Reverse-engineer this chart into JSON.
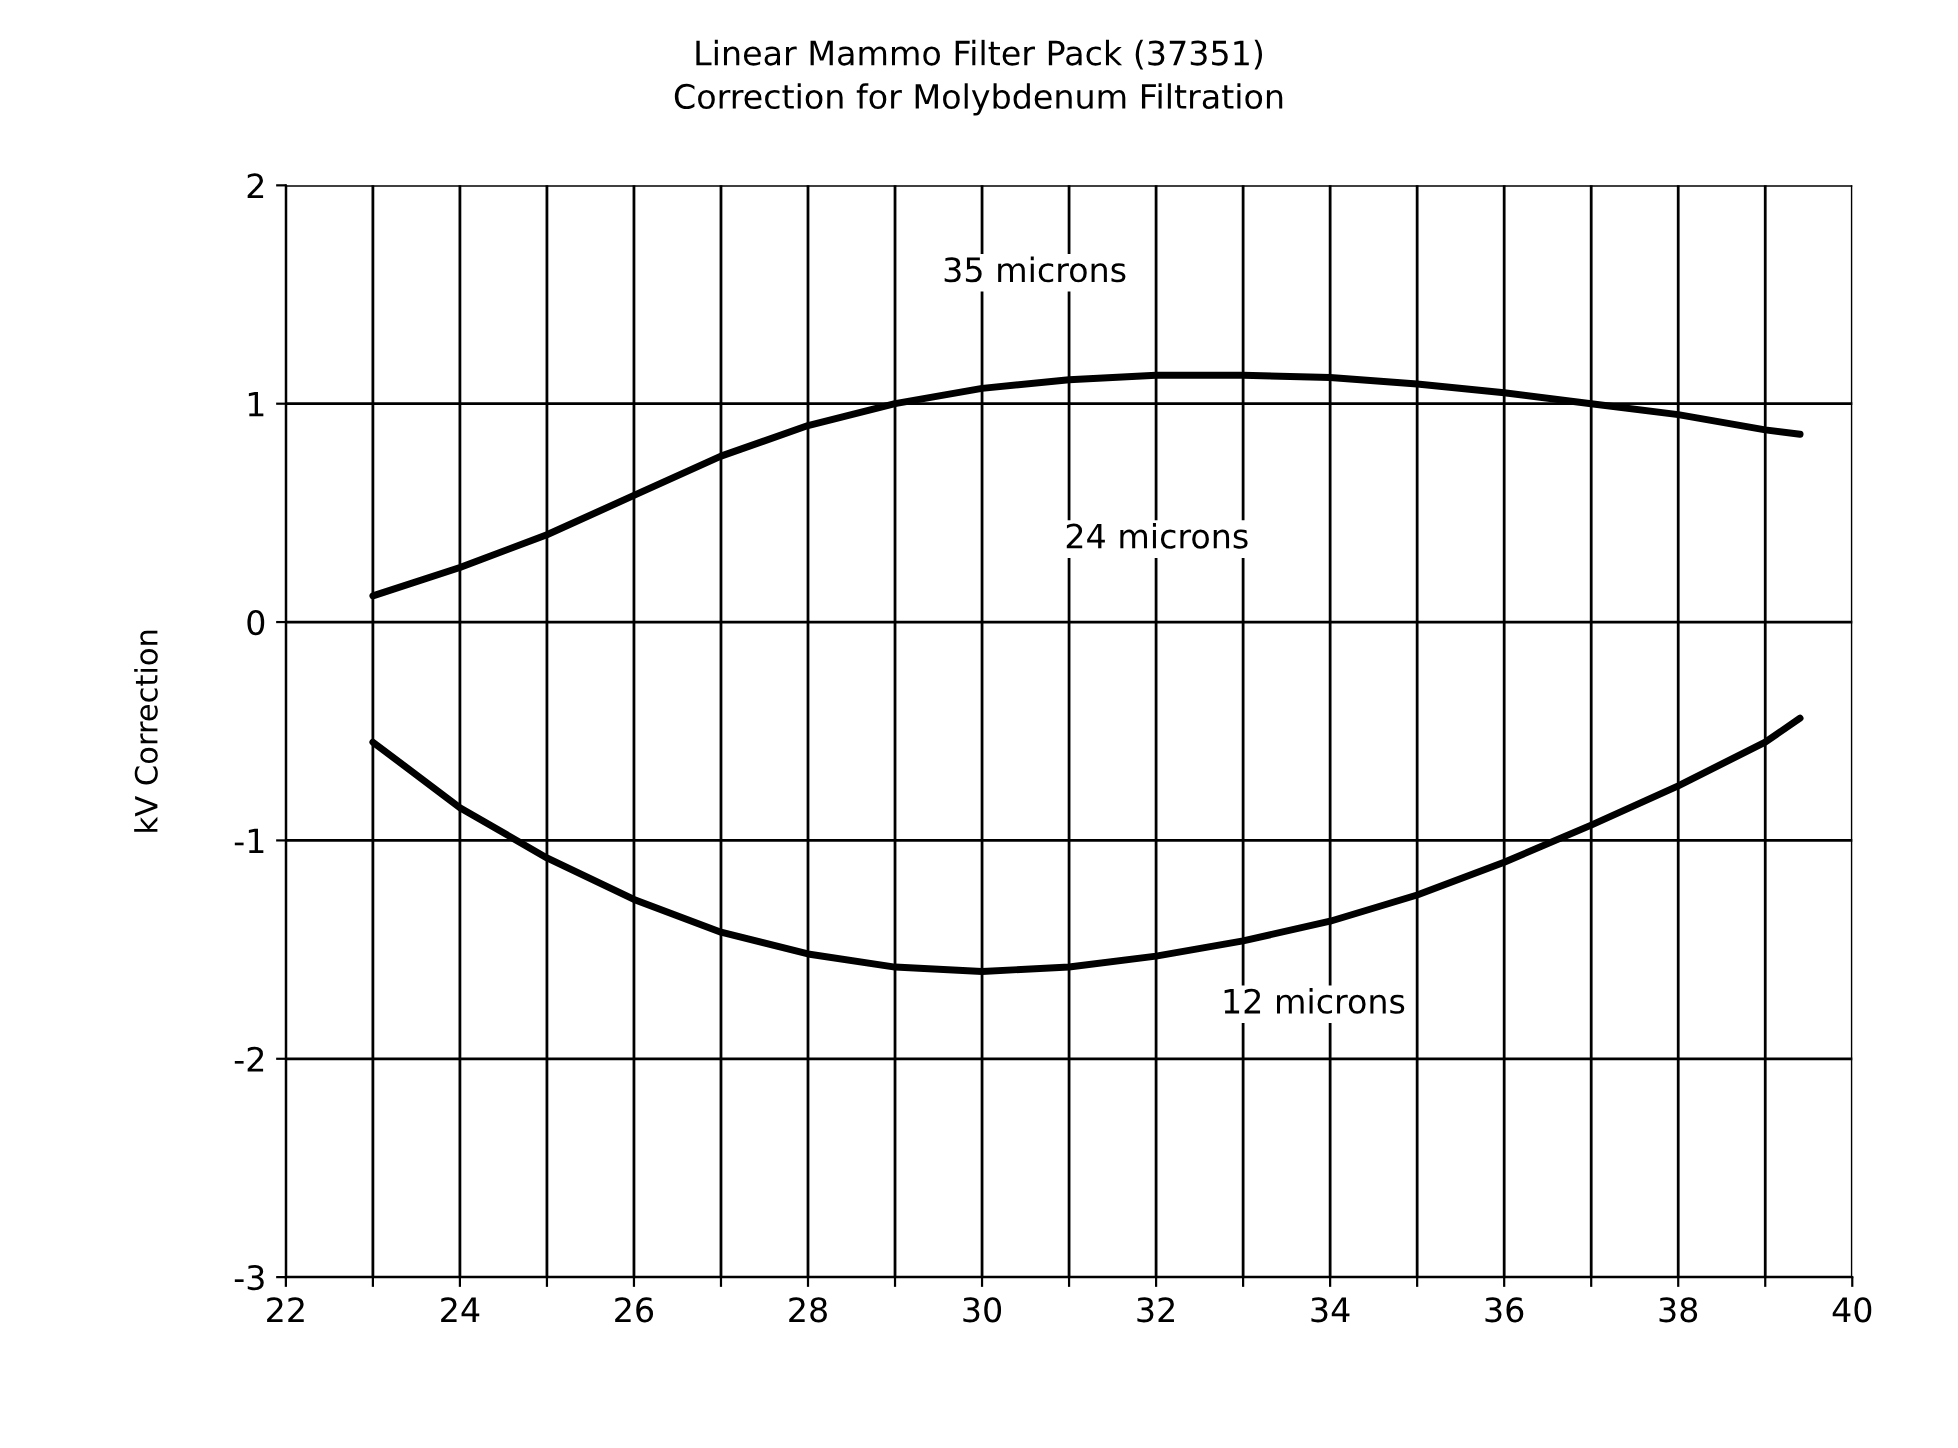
{
  "chart_data": {
    "type": "line",
    "title": "Linear Mammo Filter Pack (37351)",
    "subtitle": "Correction for Molybdenum Filtration",
    "ylabel": "kV Correction",
    "series": [
      {
        "color": "#000000",
        "x": [
          23,
          24,
          25,
          26,
          27,
          28,
          29,
          30,
          31,
          32,
          33,
          34,
          35,
          36,
          37,
          38,
          39,
          39.4
        ],
        "values": [
          0.12,
          0.25,
          0.4,
          0.58,
          0.76,
          0.9,
          1.0,
          1.07,
          1.11,
          1.13,
          1.13,
          1.12,
          1.09,
          1.05,
          1.0,
          0.95,
          0.88,
          0.86
        ]
      },
      {
        "color": "#000000",
        "x": [
          23,
          24,
          25,
          26,
          27,
          28,
          29,
          30,
          31,
          32,
          33,
          34,
          35,
          36,
          37,
          38,
          39,
          39.4
        ],
        "values": [
          -0.55,
          -0.85,
          -1.08,
          -1.27,
          -1.42,
          -1.52,
          -1.58,
          -1.6,
          -1.58,
          -1.53,
          -1.46,
          -1.37,
          -1.25,
          -1.1,
          -0.93,
          -0.75,
          -0.55,
          -0.44
        ]
      }
    ],
    "annotations": [
      "35 microns",
      "24 microns",
      "12 microns"
    ],
    "xlim": [
      22,
      40
    ],
    "ylim": [
      -3,
      2
    ],
    "xticks": [
      22,
      {
        "value": 23,
        "label": null
      },
      24,
      {
        "value": 25,
        "label": null
      },
      26,
      {
        "value": 27,
        "label": null
      },
      28,
      {
        "value": 29,
        "label": null
      },
      30,
      {
        "value": 31,
        "label": null
      },
      32,
      {
        "value": 33,
        "label": null
      },
      34,
      {
        "value": 35,
        "label": null
      },
      36,
      {
        "value": 37,
        "label": null
      },
      38,
      {
        "value": 39,
        "label": null
      },
      40
    ],
    "yticks": [
      -3,
      -2,
      -1,
      0,
      1,
      2
    ],
    "grid": true,
    "marker": "none",
    "line_style": "solid"
  }
}
